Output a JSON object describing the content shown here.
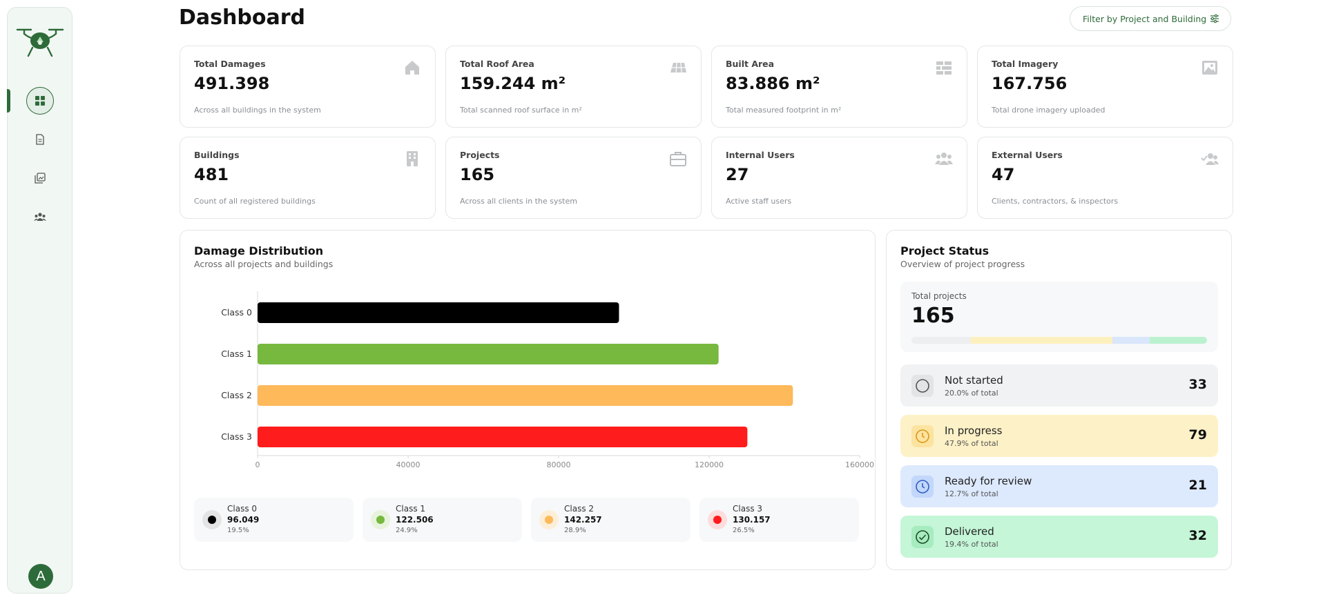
{
  "header": {
    "title": "Dashboard",
    "filter_label": "Filter by Project and Building"
  },
  "sidebar": {
    "items": [
      {
        "name": "dashboard",
        "icon": "grid-icon",
        "active": true
      },
      {
        "name": "documents",
        "icon": "document-icon",
        "active": false
      },
      {
        "name": "imagery",
        "icon": "gallery-icon",
        "active": false
      },
      {
        "name": "users",
        "icon": "users-icon",
        "active": false
      }
    ],
    "avatar_letter": "A"
  },
  "stats": [
    {
      "label": "Total Damages",
      "value": "491.398",
      "desc": "Across all buildings in the system",
      "icon": "home-icon"
    },
    {
      "label": "Total Roof Area",
      "value": "159.244 m²",
      "desc": "Total scanned roof surface in m²",
      "icon": "solar-roof-icon"
    },
    {
      "label": "Built Area",
      "value": "83.886 m²",
      "desc": "Total measured footprint in m²",
      "icon": "bricks-icon"
    },
    {
      "label": "Total Imagery",
      "value": "167.756",
      "desc": "Total drone imagery uploaded",
      "icon": "image-icon"
    },
    {
      "label": "Buildings",
      "value": "481",
      "desc": "Count of all registered buildings",
      "icon": "building-icon"
    },
    {
      "label": "Projects",
      "value": "165",
      "desc": "Across all clients in the system",
      "icon": "briefcase-icon"
    },
    {
      "label": "Internal Users",
      "value": "27",
      "desc": "Active staff users",
      "icon": "team-icon"
    },
    {
      "label": "External Users",
      "value": "47",
      "desc": "Clients, contractors, & inspectors",
      "icon": "user-check-icon"
    }
  ],
  "damage": {
    "title": "Damage Distribution",
    "subtitle": "Across all projects and buildings",
    "legend": [
      {
        "name": "Class 0",
        "value": "96.049",
        "pct": "19.5%",
        "color": "#000000",
        "bg": "#e4e4e4"
      },
      {
        "name": "Class 1",
        "value": "122.506",
        "pct": "24.9%",
        "color": "#77b83f",
        "bg": "#e7f3dc"
      },
      {
        "name": "Class 2",
        "value": "142.257",
        "pct": "28.9%",
        "color": "#fdb95a",
        "bg": "#fdeed8"
      },
      {
        "name": "Class 3",
        "value": "130.157",
        "pct": "26.5%",
        "color": "#ff1c1c",
        "bg": "#fddddd"
      }
    ]
  },
  "chart_data": {
    "type": "bar",
    "orientation": "horizontal",
    "categories": [
      "Class 0",
      "Class 1",
      "Class 2",
      "Class 3"
    ],
    "values": [
      96049,
      122506,
      142257,
      130157
    ],
    "colors": [
      "#000000",
      "#77b83f",
      "#fdb95a",
      "#ff1c1c"
    ],
    "xlim": [
      0,
      160000
    ],
    "xticks": [
      "0",
      "40000",
      "80000",
      "120000",
      "160000"
    ],
    "grid": false
  },
  "project_status": {
    "title": "Project Status",
    "subtitle": "Overview of project progress",
    "total_label": "Total projects",
    "total_value": "165",
    "items": [
      {
        "name": "Not started",
        "pct": "20.0% of total",
        "count": "33",
        "share": 0.2,
        "bg": "#f1f2f3",
        "bar": "#eceeef",
        "icon": "circle-icon"
      },
      {
        "name": "In progress",
        "pct": "47.9% of total",
        "count": "79",
        "share": 0.479,
        "bg": "#fdf1c7",
        "bar": "#fdf0bf",
        "icon": "clock-icon"
      },
      {
        "name": "Ready for review",
        "pct": "12.7% of total",
        "count": "21",
        "share": 0.127,
        "bg": "#dde9fd",
        "bar": "#d9e6fb",
        "icon": "clock-icon"
      },
      {
        "name": "Delivered",
        "pct": "19.4% of total",
        "count": "32",
        "share": 0.194,
        "bg": "#c4f6d7",
        "bar": "#bbf1cf",
        "icon": "check-circle-icon"
      }
    ]
  }
}
